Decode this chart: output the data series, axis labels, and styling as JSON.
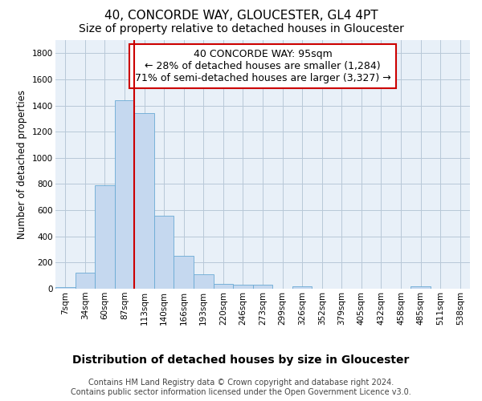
{
  "title": "40, CONCORDE WAY, GLOUCESTER, GL4 4PT",
  "subtitle": "Size of property relative to detached houses in Gloucester",
  "xlabel": "Distribution of detached houses by size in Gloucester",
  "ylabel": "Number of detached properties",
  "bar_color": "#c5d8ef",
  "bar_edge_color": "#6aaad4",
  "background_color": "#ffffff",
  "plot_bg_color": "#e8f0f8",
  "grid_color": "#b8c8d8",
  "vline_color": "#cc0000",
  "vline_x_index": 3,
  "annotation_box_color": "#cc0000",
  "annotation_text": "40 CONCORDE WAY: 95sqm\n← 28% of detached houses are smaller (1,284)\n71% of semi-detached houses are larger (3,327) →",
  "annotation_fontsize": 9,
  "bin_labels": [
    "7sqm",
    "34sqm",
    "60sqm",
    "87sqm",
    "113sqm",
    "140sqm",
    "166sqm",
    "193sqm",
    "220sqm",
    "246sqm",
    "273sqm",
    "299sqm",
    "326sqm",
    "352sqm",
    "379sqm",
    "405sqm",
    "432sqm",
    "458sqm",
    "485sqm",
    "511sqm",
    "538sqm"
  ],
  "bar_heights": [
    15,
    125,
    790,
    1440,
    1345,
    555,
    250,
    110,
    35,
    30,
    30,
    0,
    20,
    0,
    0,
    0,
    0,
    0,
    20,
    0,
    0
  ],
  "ylim": [
    0,
    1900
  ],
  "yticks": [
    0,
    200,
    400,
    600,
    800,
    1000,
    1200,
    1400,
    1600,
    1800
  ],
  "footer1": "Contains HM Land Registry data © Crown copyright and database right 2024.",
  "footer2": "Contains public sector information licensed under the Open Government Licence v3.0.",
  "title_fontsize": 11,
  "subtitle_fontsize": 10,
  "xlabel_fontsize": 10,
  "ylabel_fontsize": 8.5,
  "tick_fontsize": 7.5,
  "footer_fontsize": 7
}
